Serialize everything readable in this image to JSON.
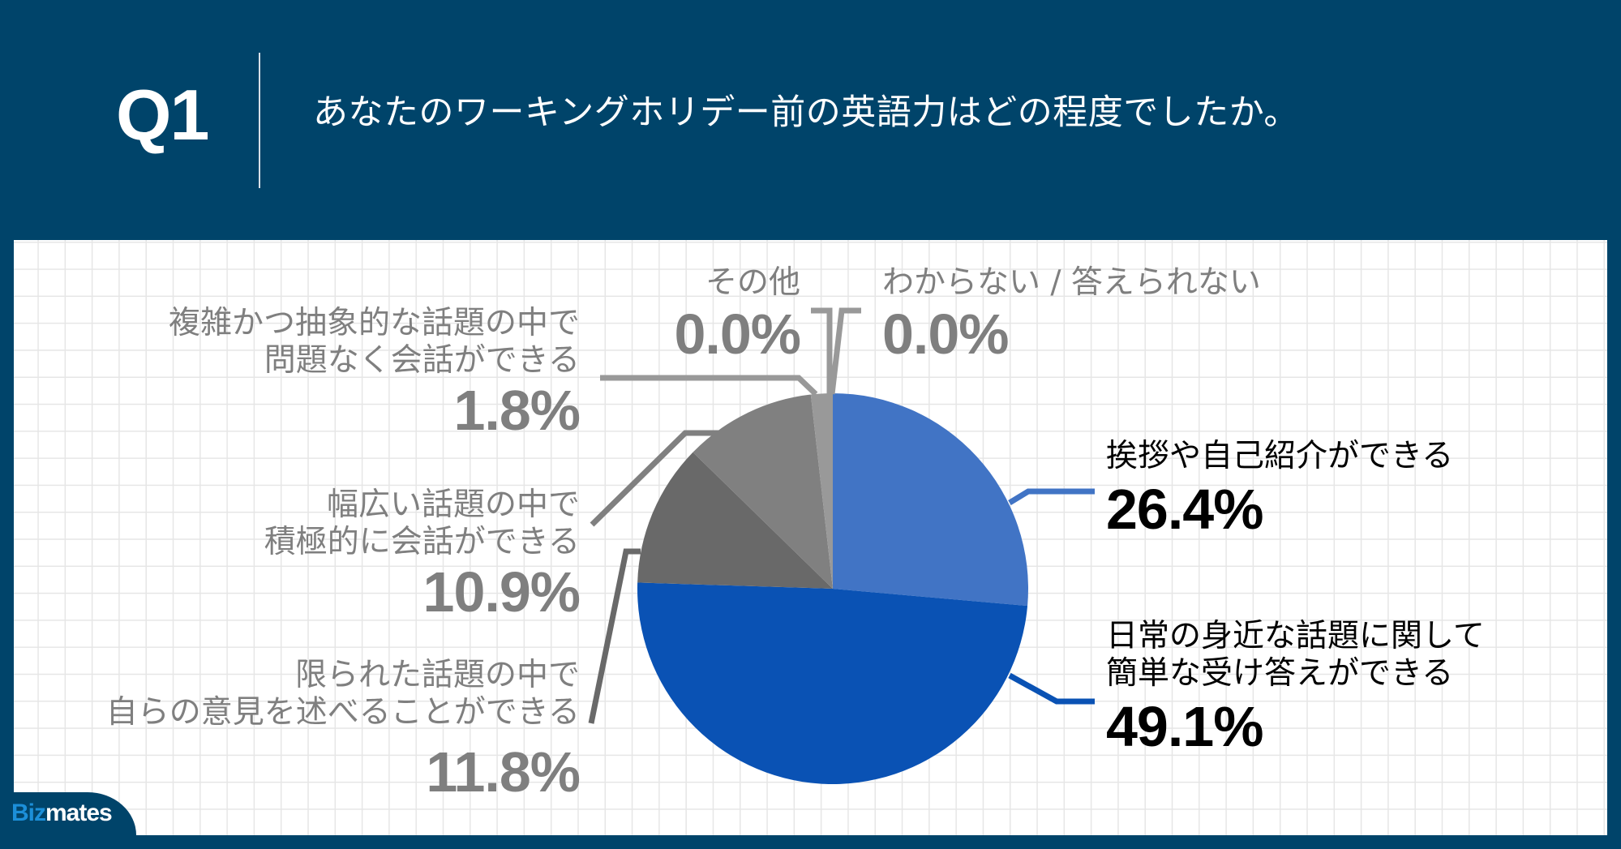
{
  "header": {
    "question_number": "Q1",
    "question_text": "あなたのワーキングホリデー前の英語力はどの程度でしたか。"
  },
  "labels": {
    "greeting": {
      "line1": "挨拶や自己紹介ができる",
      "pct": "26.4%"
    },
    "daily": {
      "line1": "日常の身近な話題に関して",
      "line2": "簡単な受け答えができる",
      "pct": "49.1%"
    },
    "limited": {
      "line1": "限られた話題の中で",
      "line2": "自らの意見を述べることができる",
      "pct": "11.8%"
    },
    "broad": {
      "line1": "幅広い話題の中で",
      "line2": "積極的に会話ができる",
      "pct": "10.9%"
    },
    "complex": {
      "line1": "複雑かつ抽象的な話題の中で",
      "line2": "問題なく会話ができる",
      "pct": "1.8%"
    },
    "other": {
      "line1": "その他",
      "pct": "0.0%"
    },
    "unknown": {
      "line1": "わからない / 答えられない",
      "pct": "0.0%"
    }
  },
  "logo": {
    "part1": "Biz",
    "part2": "mates"
  },
  "colors": {
    "background": "#00446a",
    "slice_greeting": "#4174c5",
    "slice_daily": "#0a52b4",
    "slice_limited": "#696969",
    "slice_broad": "#808080",
    "slice_complex": "#999999",
    "label_gray": "#7f7f7f"
  },
  "chart_data": {
    "type": "pie",
    "title": "あなたのワーキングホリデー前の英語力はどの程度でしたか。",
    "categories": [
      "挨拶や自己紹介ができる",
      "日常の身近な話題に関して簡単な受け答えができる",
      "限られた話題の中で自らの意見を述べることができる",
      "幅広い話題の中で積極的に会話ができる",
      "複雑かつ抽象的な話題の中で問題なく会話ができる",
      "その他",
      "わからない / 答えられない"
    ],
    "values": [
      26.4,
      49.1,
      11.8,
      10.9,
      1.8,
      0.0,
      0.0
    ],
    "unit": "%",
    "start_angle": "12 o'clock, clockwise",
    "colors": [
      "#4174c5",
      "#0a52b4",
      "#696969",
      "#808080",
      "#999999",
      "#999999",
      "#999999"
    ],
    "legend": "none (leader-line labels)"
  }
}
